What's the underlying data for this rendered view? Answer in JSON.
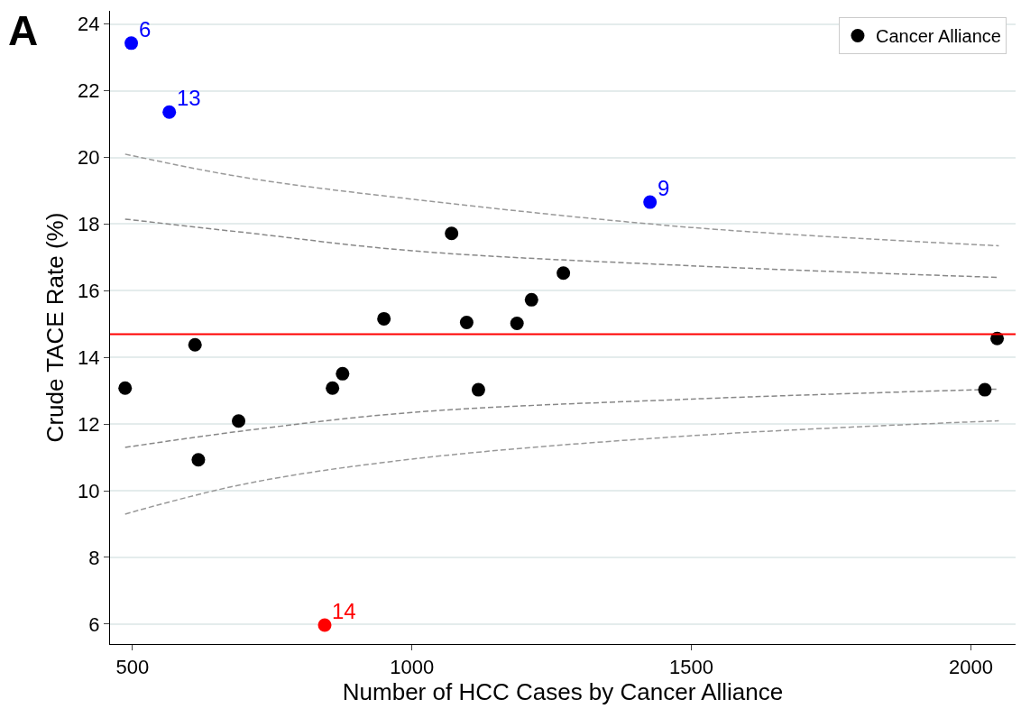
{
  "chart_data": {
    "type": "scatter",
    "xlabel": "Number of HCC Cases by Cancer Alliance",
    "ylabel": "Crude TACE Rate (%)",
    "xlim": [
      460,
      2080
    ],
    "xticks": [
      500,
      1000,
      1500,
      2000
    ],
    "ylim": [
      5.4,
      24.4
    ],
    "yticks": [
      6,
      8,
      10,
      12,
      14,
      16,
      18,
      20,
      22,
      24
    ],
    "grid": "y",
    "legend": "top right",
    "marker": "circle",
    "series": [
      {
        "name": "Cancer Alliance",
        "color": "#000000",
        "x": [
          487,
          498,
          566,
          612,
          618,
          690,
          844,
          858,
          876,
          950,
          1071,
          1098,
          1119,
          1188,
          1214,
          1271,
          1426,
          2025,
          2047
        ],
        "values": [
          13.08,
          23.43,
          21.36,
          14.38,
          10.93,
          12.09,
          5.97,
          13.08,
          13.51,
          15.16,
          17.72,
          15.05,
          13.03,
          15.02,
          15.73,
          16.53,
          18.66,
          13.03,
          14.57
        ],
        "colors": [
          "#000000",
          "#0000ff",
          "#0000ff",
          "#000000",
          "#000000",
          "#000000",
          "#ff0000",
          "#000000",
          "#000000",
          "#000000",
          "#000000",
          "#000000",
          "#000000",
          "#000000",
          "#000000",
          "#000000",
          "#0000ff",
          "#000000",
          "#000000"
        ]
      },
      {
        "type": "line",
        "marker": "none",
        "color": "#999999",
        "line_style": "dashed",
        "x": [
          487,
          700,
          1000,
          1500,
          2050
        ],
        "values": [
          20.1,
          19.4,
          18.75,
          17.9,
          17.35
        ]
      },
      {
        "type": "line",
        "marker": "none",
        "color": "#888888",
        "line_style": "dashed",
        "x": [
          487,
          700,
          1000,
          1500,
          2050
        ],
        "values": [
          18.15,
          17.75,
          17.2,
          16.75,
          16.4
        ]
      },
      {
        "type": "line",
        "marker": "none",
        "color": "#888888",
        "line_style": "dashed",
        "x": [
          487,
          700,
          1000,
          1500,
          2050
        ],
        "values": [
          11.3,
          11.8,
          12.35,
          12.75,
          13.05
        ]
      },
      {
        "type": "line",
        "marker": "none",
        "color": "#999999",
        "line_style": "dashed",
        "x": [
          487,
          700,
          1000,
          1500,
          2050
        ],
        "values": [
          9.3,
          10.2,
          10.95,
          11.65,
          12.1
        ]
      }
    ],
    "ref_lines": [
      {
        "axis": "y",
        "value": 14.7,
        "color": "#ff0000"
      }
    ],
    "annotations": [
      "A",
      {
        "text": "6",
        "x": 498,
        "y": 23.43
      },
      {
        "text": "13",
        "x": 566,
        "y": 21.36
      },
      {
        "text": "9",
        "x": 1426,
        "y": 18.66
      },
      {
        "text": "14",
        "x": 844,
        "y": 5.97
      }
    ]
  }
}
